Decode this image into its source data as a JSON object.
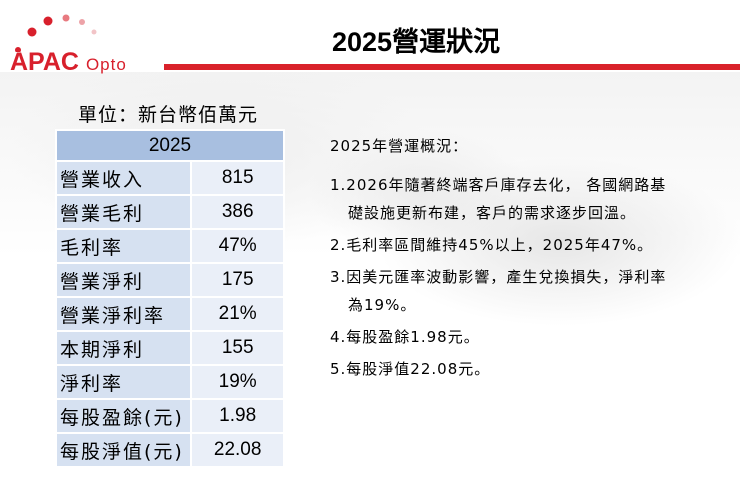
{
  "header": {
    "logo_text_main": "APAC",
    "logo_text_sub": "Opto",
    "title": "2025營運狀況",
    "accent_color": "#d9222a"
  },
  "table": {
    "unit": "單位：新台幣佰萬元",
    "year_header": "2025",
    "rows": [
      {
        "label": "營業收入",
        "value": "815"
      },
      {
        "label": "營業毛利",
        "value": "386"
      },
      {
        "label": "毛利率",
        "value": "47%"
      },
      {
        "label": "營業淨利",
        "value": "175"
      },
      {
        "label": "營業淨利率",
        "value": "21%"
      },
      {
        "label": "本期淨利",
        "value": "155"
      },
      {
        "label": "淨利率",
        "value": "19%"
      },
      {
        "label": "每股盈餘(元)",
        "value": "1.98"
      },
      {
        "label": "每股淨值(元)",
        "value": "22.08"
      }
    ],
    "header_color": "#a8bfe0",
    "label_color": "#d6e1f1",
    "value_color": "#eaeff8"
  },
  "summary": {
    "heading": "2025年營運概況：",
    "items": [
      {
        "line1": "1.2026年隨著終端客戶庫存去化， 各國網路基",
        "line2": "礎設施更新布建，客戶的需求逐步回溫。"
      },
      {
        "line1": "2.毛利率區間維持45%以上，2025年47%。",
        "line2": ""
      },
      {
        "line1": "3.因美元匯率波動影響，產生兌換損失，淨利率",
        "line2": "為19%。"
      },
      {
        "line1": "4.每股盈餘1.98元。",
        "line2": ""
      },
      {
        "line1": "5.每股淨值22.08元。",
        "line2": ""
      }
    ]
  }
}
